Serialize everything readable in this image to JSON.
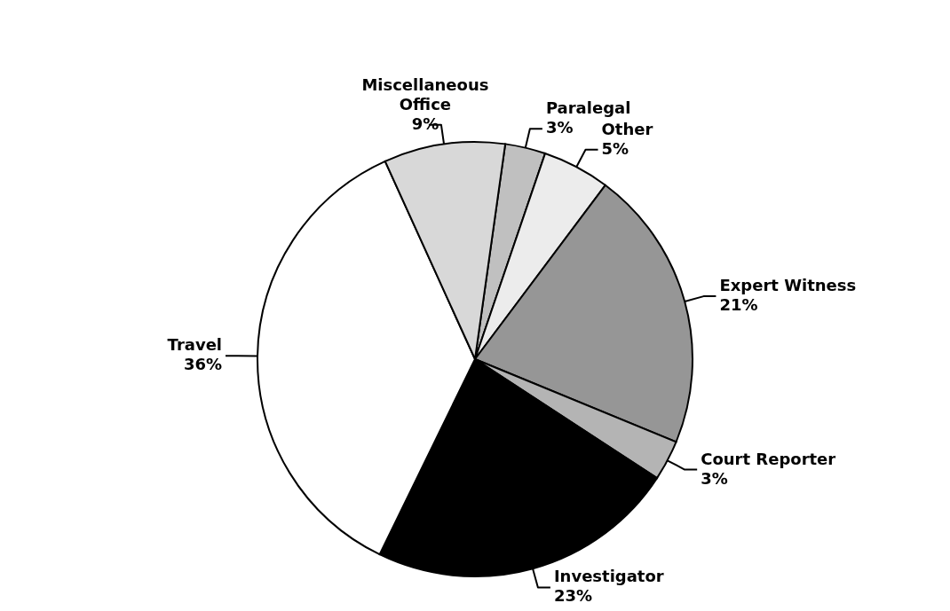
{
  "chart_data": {
    "type": "pie",
    "categories": [
      "Paralegal",
      "Other",
      "Expert Witness",
      "Court Reporter",
      "Investigator",
      "Travel",
      "Miscellaneous Office"
    ],
    "values": [
      3,
      5,
      21,
      3,
      23,
      36,
      9
    ],
    "value_labels": [
      "3%",
      "5%",
      "21%",
      "3%",
      "23%",
      "36%",
      "9%"
    ],
    "colors": [
      "#c0c0c0",
      "#ececec",
      "#969696",
      "#b4b4b4",
      "#000000",
      "#ffffff",
      "#d8d8d8"
    ],
    "legend": false
  }
}
